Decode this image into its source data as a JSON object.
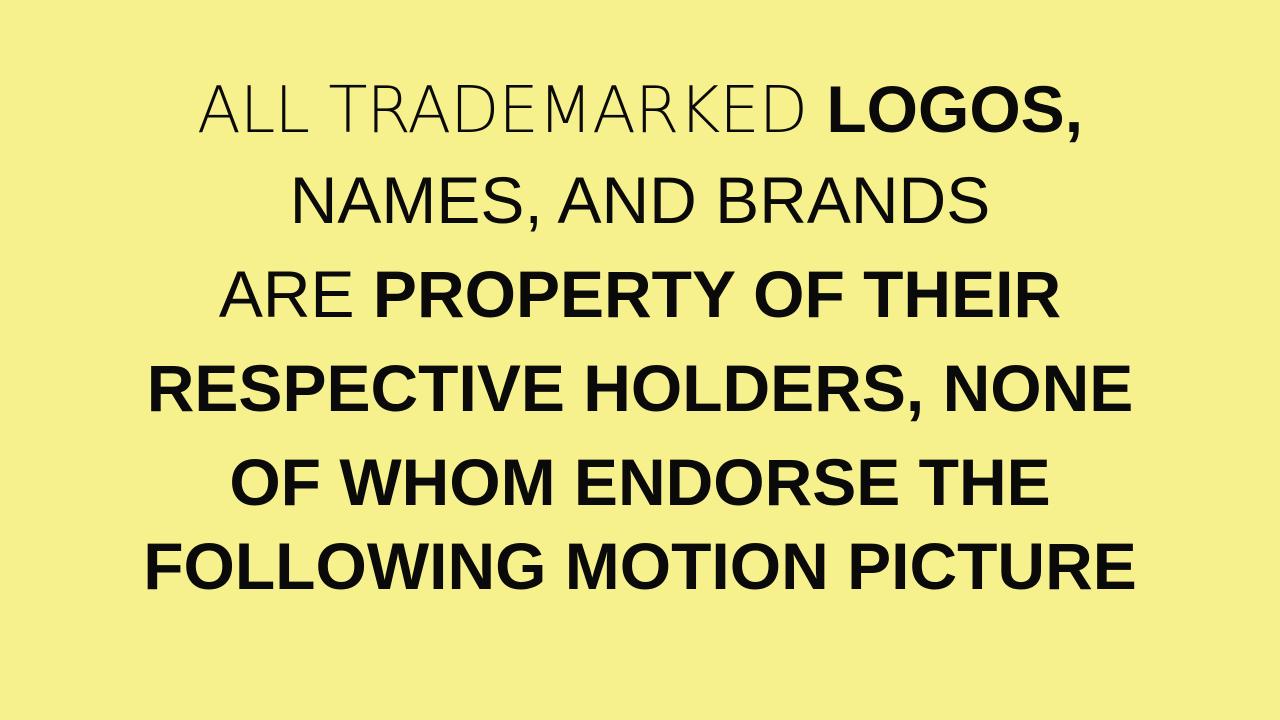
{
  "disclaimer": {
    "lines": [
      {
        "segments": [
          "ALL TRADEMARKED ",
          "LOGOS,"
        ]
      },
      {
        "segments": [
          "NAMES, AND BRANDS"
        ]
      },
      {
        "segments": [
          "ARE ",
          "PROPERTY OF THEIR"
        ]
      },
      {
        "segments": [
          "RESPECTIVE HOLDERS, ",
          "NONE"
        ]
      },
      {
        "segments": [
          "OF WHOM ENDORSE THE"
        ]
      },
      {
        "segments": [
          "FOLLOWING MOTION PICTURE"
        ]
      }
    ]
  },
  "colors": {
    "background": "#f6f18d",
    "text": "#0a0a0a"
  }
}
